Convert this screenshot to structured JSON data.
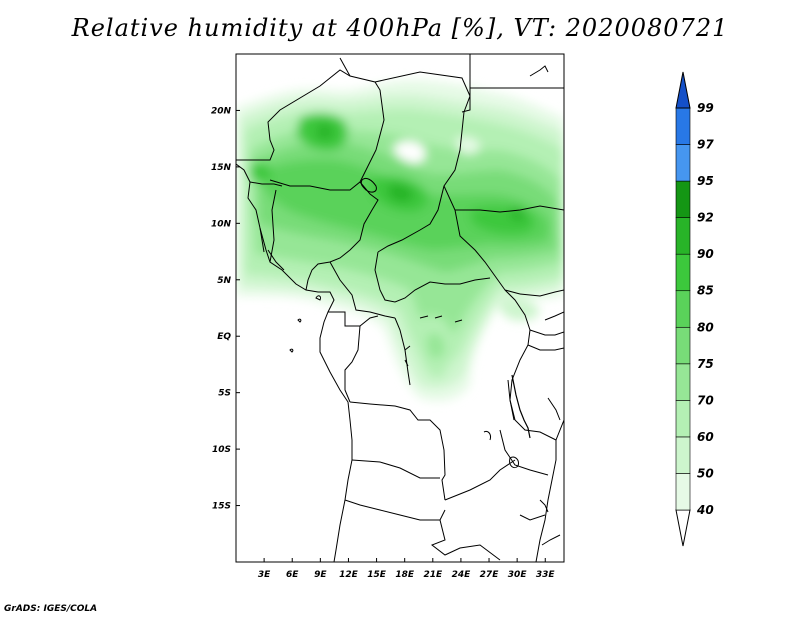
{
  "title": "Relative humidity at 400hPa [%], VT: 2020080721",
  "credit": "GrADS: IGES/COLA",
  "map": {
    "lon_range": [
      0,
      35
    ],
    "lat_range": [
      -20,
      25
    ],
    "lon_ticks": [
      {
        "lon": 3,
        "label": "3E"
      },
      {
        "lon": 6,
        "label": "6E"
      },
      {
        "lon": 9,
        "label": "9E"
      },
      {
        "lon": 12,
        "label": "12E"
      },
      {
        "lon": 15,
        "label": "15E"
      },
      {
        "lon": 18,
        "label": "18E"
      },
      {
        "lon": 21,
        "label": "21E"
      },
      {
        "lon": 24,
        "label": "24E"
      },
      {
        "lon": 27,
        "label": "27E"
      },
      {
        "lon": 30,
        "label": "30E"
      },
      {
        "lon": 33,
        "label": "33E"
      }
    ],
    "lat_ticks": [
      {
        "lat": 20,
        "label": "20N"
      },
      {
        "lat": 15,
        "label": "15N"
      },
      {
        "lat": 10,
        "label": "10N"
      },
      {
        "lat": 5,
        "label": "5N"
      },
      {
        "lat": 0,
        "label": "EQ"
      },
      {
        "lat": -5,
        "label": "5S"
      },
      {
        "lat": -10,
        "label": "10S"
      },
      {
        "lat": -15,
        "label": "15S"
      }
    ]
  },
  "colorbar": {
    "levels": [
      "40",
      "50",
      "60",
      "70",
      "75",
      "80",
      "85",
      "90",
      "92",
      "95",
      "97",
      "99"
    ],
    "colors": [
      "#ffffff",
      "#e6fae6",
      "#cdf5cd",
      "#b4f0b4",
      "#96e696",
      "#78dc78",
      "#5ad25a",
      "#3cc83c",
      "#28b428",
      "#149614",
      "#4696f0",
      "#2878e6",
      "#1450c8"
    ]
  }
}
